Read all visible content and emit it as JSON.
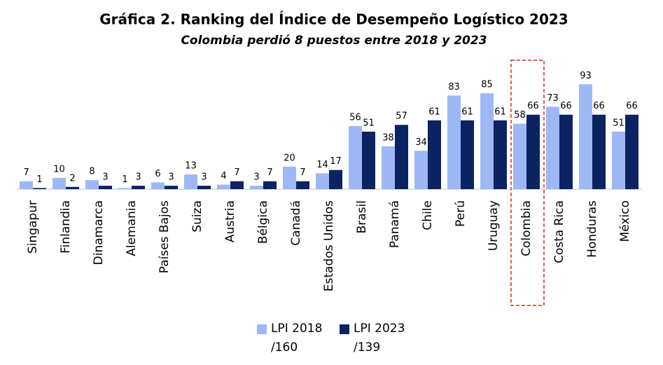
{
  "chart_data": {
    "type": "bar",
    "title": "Gráfica 2. Ranking del Índice de Desempeño Logístico 2023",
    "subtitle": "Colombia perdió 8 puestos entre 2018 y 2023",
    "categories": [
      "Singapur",
      "Finlandia",
      "Dinamarca",
      "Alemania",
      "Países Bajos",
      "Suiza",
      "Austria",
      "Bélgica",
      "Canadá",
      "Estados Unidos",
      "Brasil",
      "Panamá",
      "Chile",
      "Perú",
      "Uruguay",
      "Colombia",
      "Costa Rica",
      "Honduras",
      "México"
    ],
    "series": [
      {
        "name": "LPI 2018 /160",
        "color": "#9db8f5",
        "values": [
          7,
          10,
          8,
          1,
          6,
          13,
          4,
          3,
          20,
          14,
          56,
          38,
          34,
          83,
          85,
          58,
          73,
          93,
          51
        ]
      },
      {
        "name": "LPI 2023 /139",
        "color": "#0b2361",
        "values": [
          1,
          2,
          3,
          3,
          3,
          3,
          7,
          7,
          7,
          17,
          51,
          57,
          61,
          61,
          61,
          66,
          66,
          66,
          66
        ]
      }
    ],
    "ylim": [
      0,
      100
    ]
  }
}
